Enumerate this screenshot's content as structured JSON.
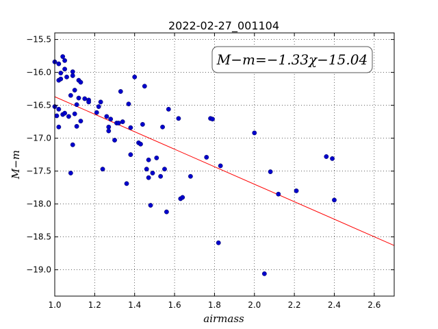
{
  "chart_data": {
    "type": "scatter",
    "title": "2022-02-27_001104",
    "xlabel": "airmass",
    "ylabel": "M−m",
    "xlim": [
      1.0,
      2.7
    ],
    "ylim": [
      -19.4,
      -15.4
    ],
    "y_inverted": true,
    "grid": true,
    "x_ticks": [
      "1.0",
      "1.2",
      "1.4",
      "1.6",
      "1.8",
      "2.0",
      "2.2",
      "2.4",
      "2.6"
    ],
    "x_tick_values": [
      1.0,
      1.2,
      1.4,
      1.6,
      1.8,
      2.0,
      2.2,
      2.4,
      2.6
    ],
    "y_ticks": [
      "−15.5",
      "−16.0",
      "−16.5",
      "−17.0",
      "−17.5",
      "−18.0",
      "−18.5",
      "−19.0"
    ],
    "y_tick_values": [
      -15.5,
      -16.0,
      -16.5,
      -17.0,
      -17.5,
      -18.0,
      -18.5,
      -19.0
    ],
    "annotation": "M−m=−1.33χ−15.04",
    "annotation_placement": "top-right",
    "fit": {
      "slope": -1.33,
      "intercept": -15.04,
      "color": "#ff0000"
    },
    "point_color": "#0000cc",
    "points": [
      [
        1.0,
        -15.84
      ],
      [
        1.0,
        -16.52
      ],
      [
        1.01,
        -16.66
      ],
      [
        1.02,
        -15.87
      ],
      [
        1.02,
        -16.12
      ],
      [
        1.02,
        -16.56
      ],
      [
        1.02,
        -16.83
      ],
      [
        1.03,
        -16.01
      ],
      [
        1.03,
        -16.1
      ],
      [
        1.04,
        -15.76
      ],
      [
        1.04,
        -16.64
      ],
      [
        1.05,
        -15.95
      ],
      [
        1.05,
        -16.62
      ],
      [
        1.05,
        -15.82
      ],
      [
        1.06,
        -16.07
      ],
      [
        1.07,
        -16.67
      ],
      [
        1.08,
        -17.53
      ],
      [
        1.08,
        -16.35
      ],
      [
        1.09,
        -15.99
      ],
      [
        1.09,
        -16.05
      ],
      [
        1.09,
        -17.1
      ],
      [
        1.1,
        -16.27
      ],
      [
        1.1,
        -16.63
      ],
      [
        1.11,
        -16.49
      ],
      [
        1.11,
        -16.82
      ],
      [
        1.12,
        -16.12
      ],
      [
        1.12,
        -16.39
      ],
      [
        1.13,
        -16.15
      ],
      [
        1.13,
        -16.74
      ],
      [
        1.15,
        -16.4
      ],
      [
        1.17,
        -16.42
      ],
      [
        1.17,
        -16.45
      ],
      [
        1.21,
        -16.61
      ],
      [
        1.22,
        -16.52
      ],
      [
        1.23,
        -16.45
      ],
      [
        1.24,
        -17.47
      ],
      [
        1.26,
        -16.67
      ],
      [
        1.27,
        -16.83
      ],
      [
        1.27,
        -16.89
      ],
      [
        1.28,
        -16.71
      ],
      [
        1.3,
        -17.03
      ],
      [
        1.31,
        -16.77
      ],
      [
        1.32,
        -16.77
      ],
      [
        1.33,
        -16.29
      ],
      [
        1.34,
        -16.75
      ],
      [
        1.36,
        -17.69
      ],
      [
        1.37,
        -16.48
      ],
      [
        1.38,
        -16.84
      ],
      [
        1.38,
        -17.25
      ],
      [
        1.4,
        -16.07
      ],
      [
        1.42,
        -17.07
      ],
      [
        1.43,
        -17.09
      ],
      [
        1.44,
        -16.79
      ],
      [
        1.45,
        -16.21
      ],
      [
        1.46,
        -17.47
      ],
      [
        1.47,
        -17.33
      ],
      [
        1.47,
        -17.6
      ],
      [
        1.48,
        -18.02
      ],
      [
        1.49,
        -17.53
      ],
      [
        1.51,
        -17.3
      ],
      [
        1.53,
        -17.58
      ],
      [
        1.54,
        -16.83
      ],
      [
        1.55,
        -17.47
      ],
      [
        1.56,
        -18.12
      ],
      [
        1.57,
        -16.56
      ],
      [
        1.62,
        -16.7
      ],
      [
        1.63,
        -17.92
      ],
      [
        1.64,
        -17.9
      ],
      [
        1.68,
        -17.58
      ],
      [
        1.76,
        -17.29
      ],
      [
        1.78,
        -16.7
      ],
      [
        1.79,
        -16.71
      ],
      [
        1.82,
        -18.59
      ],
      [
        1.83,
        -17.42
      ],
      [
        2.0,
        -16.92
      ],
      [
        2.05,
        -19.06
      ],
      [
        2.08,
        -17.51
      ],
      [
        2.12,
        -17.85
      ],
      [
        2.21,
        -17.8
      ],
      [
        2.36,
        -17.28
      ],
      [
        2.39,
        -17.31
      ],
      [
        2.4,
        -17.94
      ]
    ]
  }
}
